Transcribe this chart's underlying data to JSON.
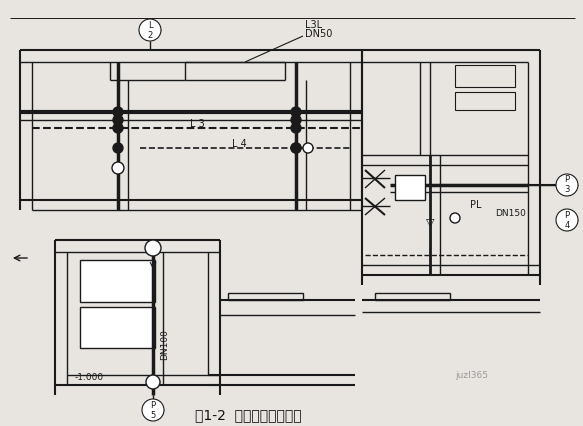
{
  "bg_color": "#e8e5e0",
  "line_color": "#1a1a1a",
  "title": "图1-2  室内给排水平面图",
  "watermark": "juzl365",
  "label_L3L": "L3L",
  "label_DN50": "DN50",
  "label_L3": "L 3",
  "label_L4": "L 4",
  "label_PL": "PL",
  "label_DN150": "DN150",
  "label_DN100": "DN100",
  "label_minus1000": "-1.000"
}
